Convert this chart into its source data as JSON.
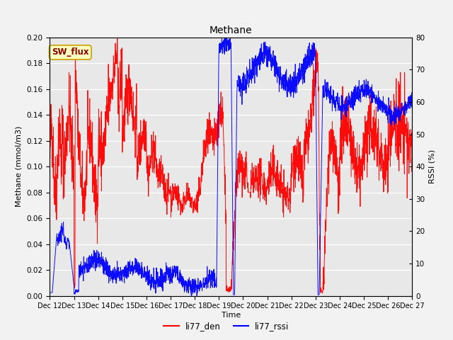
{
  "title": "Methane",
  "ylabel_left": "Methane (mmol/m3)",
  "ylabel_right": "RSSI (%)",
  "xlabel": "Time",
  "ylim_left": [
    0.0,
    0.2
  ],
  "ylim_right": [
    0,
    80
  ],
  "yticks_left": [
    0.0,
    0.02,
    0.04,
    0.06,
    0.08,
    0.1,
    0.12,
    0.14,
    0.16,
    0.18,
    0.2
  ],
  "yticks_right": [
    0,
    10,
    20,
    30,
    40,
    50,
    60,
    70,
    80
  ],
  "xtick_labels": [
    "Dec 12",
    "Dec 13",
    "Dec 14",
    "Dec 15",
    "Dec 16",
    "Dec 17",
    "Dec 18",
    "Dec 19",
    "Dec 20",
    "Dec 21",
    "Dec 22",
    "Dec 23",
    "Dec 24",
    "Dec 25",
    "Dec 26",
    "Dec 27"
  ],
  "sw_flux_label": "SW_flux",
  "legend_labels": [
    "li77_den",
    "li77_rssi"
  ],
  "line_colors": [
    "red",
    "blue"
  ],
  "bg_color": "#e8e8e8",
  "fig_bg": "#f2f2f2",
  "label_box_facecolor": "#ffffc0",
  "label_box_edgecolor": "#c8a000",
  "label_text_color": "#8b0000"
}
